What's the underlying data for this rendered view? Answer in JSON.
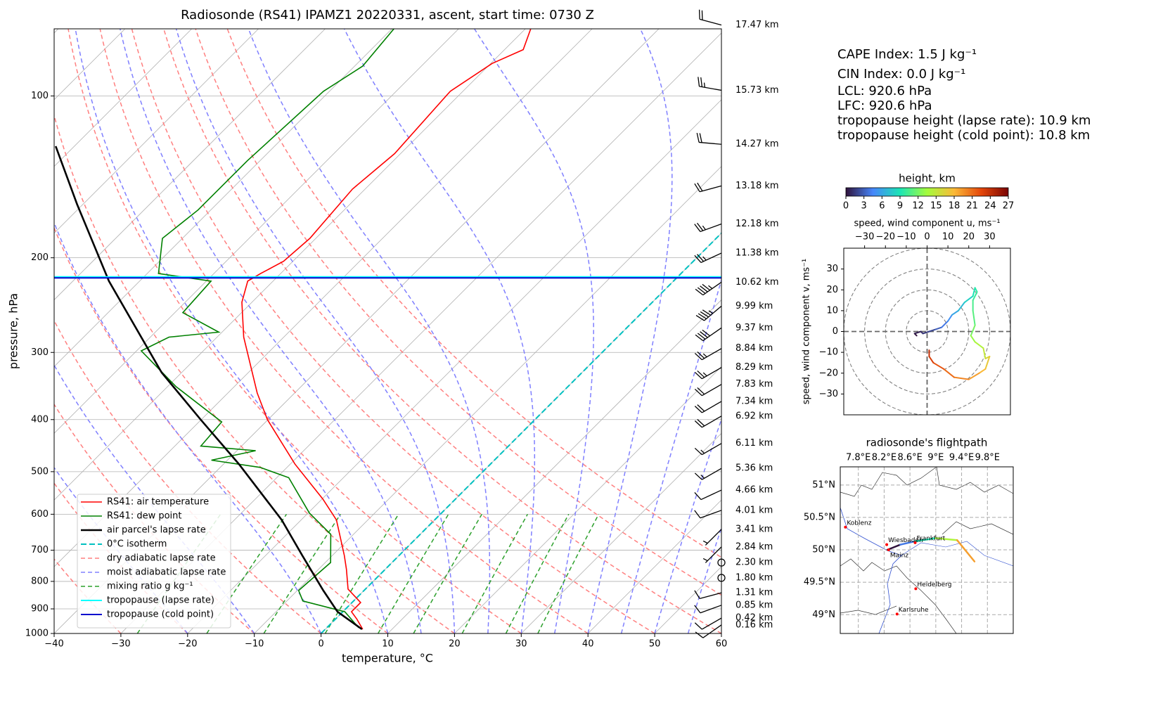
{
  "chart_data": [
    {
      "type": "skewt",
      "title": "Radiosonde (RS41) IPAMZ1 20220331, ascent, start time: 0730 Z",
      "xlabel": "temperature, °C",
      "ylabel": "pressure, hPa",
      "xlim": [
        -40,
        60
      ],
      "ylim": [
        1000,
        75
      ],
      "log_y": true,
      "grid": true,
      "legend": "lower left",
      "xticks": [
        {
          "value": -40,
          "label": "−40"
        },
        {
          "value": -30,
          "label": "−30"
        },
        {
          "value": -20,
          "label": "−20"
        },
        {
          "value": -10,
          "label": "−10"
        },
        0,
        10,
        20,
        30,
        40,
        50,
        60
      ],
      "yticks": [
        100,
        200,
        300,
        400,
        500,
        600,
        700,
        800,
        900,
        1000
      ],
      "series": [
        {
          "name": "RS41: air temperature",
          "kind": "profile",
          "color": "#ff0000",
          "width": 1.6,
          "pressure": [
            982,
            940,
            911,
            876,
            827,
            760,
            716,
            615,
            562,
            484,
            400,
            357,
            281,
            242,
            221,
            214,
            203,
            184,
            149,
            128,
            98,
            87,
            82,
            75
          ],
          "values": [
            5.6,
            3.2,
            1.3,
            1.3,
            -2.6,
            -5.8,
            -8.2,
            -14.7,
            -19.9,
            -29.3,
            -40.1,
            -45.6,
            -56,
            -61.5,
            -63.8,
            -63,
            -61.4,
            -60.9,
            -61.9,
            -60.9,
            -61.9,
            -59.8,
            -57.2,
            -59.2
          ]
        },
        {
          "name": "RS41: dew point",
          "kind": "profile",
          "color": "#008000",
          "width": 1.6,
          "pressure": [
            976,
            911,
            870,
            832,
            738,
            654,
            597,
            513,
            491,
            476,
            457,
            448,
            404,
            347,
            298,
            281,
            275,
            253,
            221,
            214,
            184,
            163,
            132,
            98,
            88,
            75
          ],
          "values": [
            4.8,
            0.3,
            -7.6,
            -9.8,
            -9.2,
            -13.4,
            -19.8,
            -28.2,
            -34,
            -42.4,
            -37.2,
            -46.1,
            -46.6,
            -58.8,
            -69.3,
            -67.2,
            -60.5,
            -68.8,
            -69.3,
            -78.3,
            -83,
            -81.9,
            -81.9,
            -80.9,
            -78.8,
            -79.7
          ]
        },
        {
          "name": "air parcel's lapse rate",
          "kind": "profile",
          "color": "#000000",
          "width": 2.6,
          "pressure": [
            982,
            911,
            832,
            716,
            615,
            484,
            400,
            327,
            221,
            159,
            124
          ],
          "values": [
            5.5,
            -0.8,
            -6.1,
            -14.5,
            -22.9,
            -37.7,
            -50.1,
            -63,
            -84.6,
            -100.9,
            -112.8
          ]
        },
        {
          "name": "0°C isotherm",
          "kind": "isotherm",
          "color": "#00c0c0",
          "width": 2,
          "values": [
            0
          ]
        },
        {
          "name": "dry adiabatic lapse rate",
          "kind": "dry_adiabat",
          "color": "#ff8080",
          "width": 1.5,
          "values": [
            -40,
            -30,
            -20,
            -10,
            0,
            10,
            20,
            30,
            40,
            50,
            60,
            70,
            80
          ]
        },
        {
          "name": "moist adiabatic lapse rate",
          "kind": "moist_adiabat",
          "color": "#8080ff",
          "width": 1.5,
          "values": [
            -20,
            -10,
            0,
            10,
            15,
            20,
            25,
            30,
            35,
            40,
            45,
            50,
            55
          ]
        },
        {
          "name": "mixing ratio g kg⁻¹",
          "kind": "mixing_ratio",
          "color": "#2ca02c",
          "width": 1.5,
          "pressure_range": [
            1000,
            600
          ],
          "values": [
            0.4,
            1,
            2,
            4,
            7,
            10,
            16,
            24,
            32
          ]
        },
        {
          "name": "tropopause (lapse rate)",
          "kind": "pressure_level",
          "color": "#00ffff",
          "width": 2,
          "values": [
            217
          ]
        },
        {
          "name": "tropopause (cold point)",
          "kind": "pressure_level",
          "color": "#0000cd",
          "width": 2,
          "values": [
            218
          ]
        }
      ],
      "wind": {
        "pressure": [
          73.8,
          97.6,
          123,
          147,
          173,
          196,
          222,
          246,
          270,
          295,
          320,
          344,
          370,
          394,
          443,
          493,
          541,
          590,
          640,
          690,
          738,
          788,
          840,
          886,
          936,
          964
        ],
        "height_labels": [
          "17.47 km",
          "15.73 km",
          "14.27 km",
          "13.18 km",
          "12.18 km",
          "11.38 km",
          "10.62 km",
          "9.99 km",
          "9.37 km",
          "8.84 km",
          "8.29 km",
          "7.83 km",
          "7.34 km",
          "6.92 km",
          "6.11 km",
          "5.36 km",
          "4.66 km",
          "4.01 km",
          "3.41 km",
          "2.84 km",
          "2.30 km",
          "1.80 km",
          "1.31 km",
          "0.85 km",
          "0.42 km",
          "0.16 km"
        ],
        "speed": [
          20,
          25,
          20,
          20,
          25,
          25,
          45,
          45,
          40,
          25,
          25,
          20,
          20,
          20,
          15,
          15,
          10,
          10,
          5,
          5,
          0,
          0,
          10,
          10,
          10,
          10
        ],
        "direction": [
          285,
          280,
          275,
          255,
          250,
          245,
          235,
          230,
          235,
          240,
          240,
          240,
          240,
          240,
          240,
          240,
          245,
          250,
          225,
          225,
          0,
          0,
          255,
          250,
          240,
          235
        ]
      },
      "annotations": [
        "CAPE Index: 1.5 J kg⁻¹",
        "CIN Index: 0.0 J kg⁻¹",
        "LCL: 920.6 hPa",
        "LFC: 920.6 hPa",
        "tropopause height (lapse rate): 10.9 km",
        "tropopause height (cold point): 10.8 km"
      ]
    },
    {
      "type": "hodograph",
      "xlabel": "speed, wind component u, ms⁻¹",
      "ylabel": "speed, wind component v, ms⁻¹",
      "xlim": [
        -40,
        40
      ],
      "ylim": [
        -40,
        40
      ],
      "xticks": [
        {
          "value": -30,
          "label": "−30"
        },
        {
          "value": -20,
          "label": "−20"
        },
        {
          "value": -10,
          "label": "−10"
        },
        0,
        10,
        20,
        30
      ],
      "yticks": [
        {
          "value": -30,
          "label": "−30"
        },
        {
          "value": -20,
          "label": "−20"
        },
        {
          "value": -10,
          "label": "−10"
        },
        0,
        10,
        20,
        30
      ],
      "rings": [
        10,
        20,
        30,
        40
      ],
      "colorbar": {
        "label": "height, km",
        "lim": [
          0,
          27
        ],
        "ticks": [
          0,
          3,
          6,
          9,
          12,
          15,
          18,
          21,
          24,
          27
        ],
        "colors": [
          "#30123b",
          "#4686fb",
          "#1be5b5",
          "#a4fc3c",
          "#fbb938",
          "#e4460a",
          "#7a0403"
        ]
      },
      "u": [
        -5,
        -6,
        -3,
        -2,
        1,
        4,
        7,
        10,
        12,
        15,
        18,
        22,
        23,
        24,
        22,
        22,
        23,
        21,
        23,
        27,
        28,
        30,
        28,
        25,
        20,
        13,
        8,
        3,
        1,
        1
      ],
      "v": [
        -2,
        -1,
        0,
        -1,
        0,
        1,
        2,
        5,
        8,
        10,
        14,
        17,
        21,
        19,
        15,
        10,
        3,
        -2,
        -5,
        -8,
        -13,
        -12,
        -18,
        -20,
        -23,
        -22,
        -18,
        -15,
        -12,
        -9
      ],
      "height": [
        0,
        0.5,
        1,
        1.5,
        2,
        3,
        4,
        5,
        6,
        7,
        8,
        9,
        9.5,
        10,
        10.5,
        11,
        12,
        13,
        14,
        15,
        16,
        17,
        18,
        19,
        20,
        21,
        22,
        23,
        24,
        25
      ]
    },
    {
      "type": "map",
      "title": "radiosonde's flightpath",
      "xlim": [
        7.52,
        10.2
      ],
      "ylim": [
        48.71,
        51.28
      ],
      "xticks": [
        {
          "value": 7.8,
          "label": "7.8°E"
        },
        {
          "value": 8.2,
          "label": "8.2°E"
        },
        {
          "value": 8.6,
          "label": "8.6°E"
        },
        {
          "value": 9,
          "label": "9°E"
        },
        {
          "value": 9.4,
          "label": "9.4°E"
        },
        {
          "value": 9.8,
          "label": "9.8°E"
        }
      ],
      "yticks": [
        {
          "value": 49,
          "label": "49°N"
        },
        {
          "value": 49.5,
          "label": "49.5°N"
        },
        {
          "value": 50,
          "label": "50°N"
        },
        {
          "value": 50.5,
          "label": "50.5°N"
        },
        {
          "value": 51,
          "label": "51°N"
        }
      ],
      "city_color": "#ff0000",
      "cities": {
        "names": [
          "Koblenz",
          "Wiesbaden",
          "Mainz",
          "Frankfurt",
          "Heidelberg",
          "Karlsruhe"
        ],
        "lon": [
          7.6,
          8.24,
          8.27,
          8.68,
          8.69,
          8.4
        ],
        "lat": [
          50.35,
          50.08,
          50.0,
          50.11,
          49.4,
          49.01
        ]
      },
      "path": {
        "lon": [
          8.25,
          8.45,
          8.67,
          9.0,
          9.33,
          9.6
        ],
        "lat": [
          50.0,
          50.08,
          50.13,
          50.18,
          50.15,
          49.82
        ],
        "height": [
          0,
          4,
          9,
          14,
          19,
          24
        ]
      }
    }
  ]
}
